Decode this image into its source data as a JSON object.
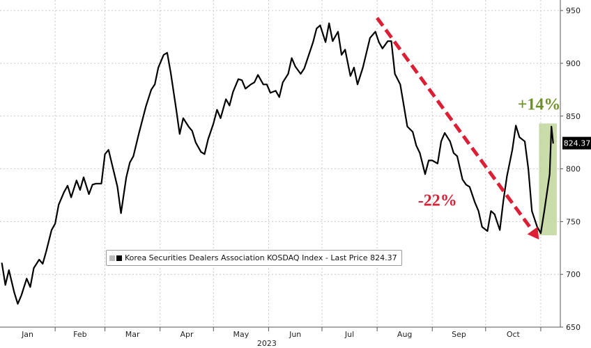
{
  "chart_data": {
    "type": "line",
    "title": "",
    "xlabel": "2023",
    "ylabel": "",
    "ylim": [
      650,
      960
    ],
    "yticks": [
      650,
      700,
      750,
      800,
      850,
      900,
      950
    ],
    "x_tick_labels": [
      "Jan",
      "Feb",
      "Mar",
      "Apr",
      "May",
      "Jun",
      "Jul",
      "Aug",
      "Sep",
      "Oct"
    ],
    "grid": true,
    "legend_position": "bottom-left",
    "series": [
      {
        "name": "Korea Securities Dealers Association KOSDAQ Index - Last Price 824.37",
        "color": "#000000",
        "x": [
          "2023-01-02",
          "2023-01-04",
          "2023-01-06",
          "2023-01-09",
          "2023-01-11",
          "2023-01-13",
          "2023-01-16",
          "2023-01-18",
          "2023-01-20",
          "2023-01-23",
          "2023-01-25",
          "2023-01-27",
          "2023-01-30",
          "2023-02-01",
          "2023-02-03",
          "2023-02-06",
          "2023-02-08",
          "2023-02-10",
          "2023-02-13",
          "2023-02-15",
          "2023-02-17",
          "2023-02-20",
          "2023-02-22",
          "2023-02-24",
          "2023-02-27",
          "2023-03-01",
          "2023-03-03",
          "2023-03-06",
          "2023-03-08",
          "2023-03-10",
          "2023-03-13",
          "2023-03-15",
          "2023-03-17",
          "2023-03-20",
          "2023-03-22",
          "2023-03-24",
          "2023-03-27",
          "2023-03-29",
          "2023-03-31",
          "2023-04-03",
          "2023-04-05",
          "2023-04-07",
          "2023-04-10",
          "2023-04-12",
          "2023-04-14",
          "2023-04-17",
          "2023-04-19",
          "2023-04-21",
          "2023-04-24",
          "2023-04-26",
          "2023-04-28",
          "2023-05-01",
          "2023-05-03",
          "2023-05-05",
          "2023-05-08",
          "2023-05-10",
          "2023-05-12",
          "2023-05-15",
          "2023-05-17",
          "2023-05-19",
          "2023-05-22",
          "2023-05-24",
          "2023-05-26",
          "2023-05-29",
          "2023-05-31",
          "2023-06-02",
          "2023-06-05",
          "2023-06-07",
          "2023-06-09",
          "2023-06-12",
          "2023-06-14",
          "2023-06-16",
          "2023-06-19",
          "2023-06-21",
          "2023-06-23",
          "2023-06-26",
          "2023-06-28",
          "2023-06-30",
          "2023-07-03",
          "2023-07-05",
          "2023-07-07",
          "2023-07-10",
          "2023-07-12",
          "2023-07-14",
          "2023-07-17",
          "2023-07-19",
          "2023-07-21",
          "2023-07-24",
          "2023-07-26",
          "2023-07-28",
          "2023-07-31",
          "2023-08-02",
          "2023-08-04",
          "2023-08-07",
          "2023-08-09",
          "2023-08-11",
          "2023-08-14",
          "2023-08-16",
          "2023-08-18",
          "2023-08-21",
          "2023-08-23",
          "2023-08-25",
          "2023-08-28",
          "2023-08-30",
          "2023-09-01",
          "2023-09-04",
          "2023-09-06",
          "2023-09-08",
          "2023-09-11",
          "2023-09-13",
          "2023-09-15",
          "2023-09-18",
          "2023-09-20",
          "2023-09-22",
          "2023-09-25",
          "2023-09-27",
          "2023-09-29",
          "2023-10-02",
          "2023-10-04",
          "2023-10-06",
          "2023-10-09",
          "2023-10-11",
          "2023-10-13",
          "2023-10-16",
          "2023-10-18",
          "2023-10-20",
          "2023-10-23",
          "2023-10-25",
          "2023-10-27",
          "2023-10-30",
          "2023-11-01",
          "2023-11-03",
          "2023-11-06",
          "2023-11-07",
          "2023-11-08"
        ],
        "values": [
          711,
          690,
          704,
          683,
          672,
          680,
          696,
          688,
          706,
          714,
          710,
          722,
          742,
          748,
          766,
          778,
          784,
          773,
          789,
          780,
          792,
          776,
          785,
          786,
          786,
          814,
          818,
          797,
          783,
          758,
          792,
          806,
          812,
          833,
          846,
          859,
          875,
          880,
          896,
          908,
          910,
          891,
          857,
          833,
          848,
          840,
          836,
          825,
          816,
          814,
          828,
          843,
          856,
          848,
          866,
          860,
          873,
          885,
          884,
          876,
          880,
          882,
          889,
          880,
          880,
          872,
          874,
          868,
          882,
          890,
          905,
          897,
          890,
          895,
          905,
          920,
          933,
          936,
          920,
          938,
          921,
          930,
          908,
          913,
          888,
          896,
          880,
          896,
          910,
          924,
          930,
          920,
          914,
          921,
          921,
          890,
          880,
          860,
          840,
          835,
          822,
          815,
          795,
          808,
          808,
          805,
          826,
          834,
          826,
          815,
          812,
          790,
          785,
          783,
          768,
          760,
          745,
          741,
          760,
          757,
          742,
          770,
          793,
          818,
          841,
          830,
          826,
          800,
          760,
          745,
          739,
          760,
          795,
          840,
          824
        ]
      }
    ],
    "annotations": [
      {
        "text": "-22%",
        "color": "#dc1f35",
        "from": [
          "2023-08-01",
          943
        ],
        "to": [
          "2023-10-31",
          733
        ]
      },
      {
        "text": "+14%",
        "color": "#6f8f2c",
        "highlight_x": [
          "2023-10-31",
          "2023-11-10"
        ],
        "highlight_y": [
          737,
          843
        ],
        "highlight_color": "#bfd69a"
      }
    ],
    "last_price_label": {
      "text": "824.37",
      "value": 824.37,
      "background": "#000000",
      "color": "#ffffff"
    }
  },
  "legend": {
    "text": "Korea Securities Dealers Association KOSDAQ Index - Last Price 824.37"
  }
}
